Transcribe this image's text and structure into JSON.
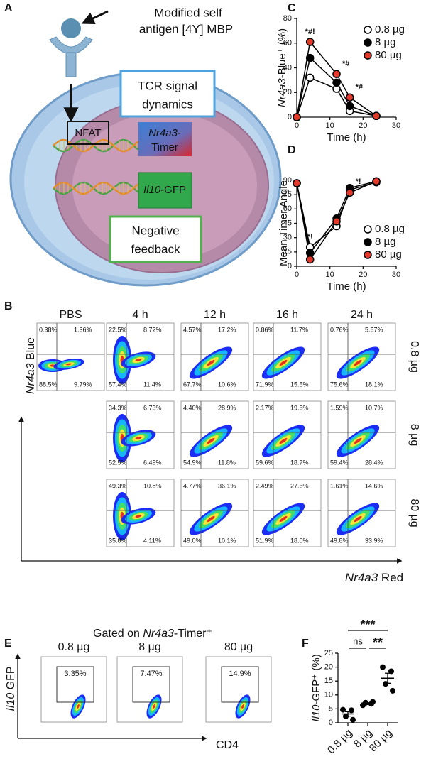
{
  "panel_a": {
    "label": "A",
    "antigen": [
      "Modified self",
      "antigen [4Y] MBP"
    ],
    "tcr_box": [
      "TCR signal",
      "dynamics"
    ],
    "nfat": "NFAT",
    "timer": {
      "line1": [
        {
          "text": "Nr4a3",
          "italic": true
        },
        {
          "text": "-"
        }
      ],
      "line2": "Timer"
    },
    "gfp": [
      {
        "text": "Il10",
        "italic": true
      },
      {
        "text": "-GFP"
      }
    ],
    "feedback": [
      "Negative",
      "feedback"
    ]
  },
  "panel_b": {
    "label": "B",
    "columns": [
      "PBS",
      "4 h",
      "12 h",
      "16 h",
      "24 h"
    ],
    "rows": [
      {
        "label": "0.8 µg",
        "plots": [
          [
            "0.38%",
            "1.36%",
            "88.5%",
            "9.79%"
          ],
          [
            "22.5%",
            "8.72%",
            "57.4%",
            "11.4%"
          ],
          [
            "4.57%",
            "17.2%",
            "67.7%",
            "10.6%"
          ],
          [
            "0.86%",
            "11.7%",
            "71.9%",
            "15.5%"
          ],
          [
            "0.76%",
            "5.57%",
            "75.6%",
            "18.1%"
          ]
        ]
      },
      {
        "label": "8 µg",
        "plots": [
          null,
          [
            "34.3%",
            "6.73%",
            "52.5%",
            "6.49%"
          ],
          [
            "4.40%",
            "28.9%",
            "54.9%",
            "11.8%"
          ],
          [
            "2.17%",
            "19.5%",
            "59.6%",
            "18.7%"
          ],
          [
            "1.59%",
            "10.7%",
            "59.4%",
            "28.4%"
          ]
        ]
      },
      {
        "label": "80 µg",
        "plots": [
          null,
          [
            "49.3%",
            "10.8%",
            "35.8%",
            "4.11%"
          ],
          [
            "4.77%",
            "36.1%",
            "49.0%",
            "10.1%"
          ],
          [
            "2.49%",
            "27.6%",
            "51.9%",
            "18.0%"
          ],
          [
            "1.61%",
            "14.6%",
            "49.8%",
            "33.9%"
          ]
        ]
      }
    ],
    "y_label": [
      {
        "text": "Nr4a3",
        "italic": true
      },
      {
        "text": " Blue"
      }
    ],
    "x_label": [
      {
        "text": "Nr4a3",
        "italic": true
      },
      {
        "text": " Red"
      }
    ]
  },
  "panel_e": {
    "label": "E",
    "title": [
      {
        "text": "Gated on "
      },
      {
        "text": "Nr4a3",
        "italic": true
      },
      {
        "text": "-Timer⁺"
      }
    ],
    "plots": [
      {
        "name": "0.8 µg",
        "gate": "3.35%"
      },
      {
        "name": "8 µg",
        "gate": "7.47%"
      },
      {
        "name": "80 µg",
        "gate": "14.9%"
      }
    ],
    "y_label": [
      {
        "text": "Il10",
        "italic": true
      },
      {
        "text": " GFP"
      }
    ],
    "x_label": "CD4"
  },
  "chart_data": [
    {
      "panel": "C",
      "type": "line",
      "x_label": "Time (h)",
      "y_label": [
        {
          "text": "Nr4a3",
          "italic": true
        },
        {
          "text": "-Blue⁺ (%)"
        }
      ],
      "x": [
        0,
        4,
        12,
        16,
        24
      ],
      "xlim": [
        0,
        30
      ],
      "xticks": [
        0,
        10,
        20,
        30
      ],
      "ylim": [
        0,
        80
      ],
      "yticks": [
        0,
        20,
        40,
        60,
        80
      ],
      "legend": "upper right",
      "series": [
        {
          "name": "0.8 µg",
          "color": "#000000",
          "fill": "#ffffff",
          "values": [
            0,
            32,
            23,
            5,
            1
          ]
        },
        {
          "name": "8 µg",
          "color": "#000000",
          "fill": "#000000",
          "values": [
            0,
            48,
            28,
            9,
            1
          ]
        },
        {
          "name": "80 µg",
          "color": "#000000",
          "fill": "#e2392b",
          "values": [
            0,
            61,
            35,
            16,
            1
          ]
        }
      ],
      "annotations": [
        {
          "text": "*#!",
          "x": 4
        },
        {
          "text": "*#",
          "x": 12
        },
        {
          "text": "*#",
          "x": 16
        }
      ]
    },
    {
      "panel": "D",
      "type": "line",
      "x_label": "Time (h)",
      "y_label": "Mean Timer Angle",
      "x": [
        0,
        4,
        12,
        16,
        24
      ],
      "xlim": [
        0,
        30
      ],
      "xticks": [
        0,
        10,
        20,
        30
      ],
      "ylim": [
        0,
        90
      ],
      "yticks": [
        0,
        15,
        30,
        45,
        60,
        75,
        90
      ],
      "legend": "lower right",
      "series": [
        {
          "name": "0.8 µg",
          "color": "#000000",
          "fill": "#ffffff",
          "values": [
            87,
            20,
            42,
            80,
            88
          ]
        },
        {
          "name": "8 µg",
          "color": "#000000",
          "fill": "#000000",
          "values": [
            87,
            14,
            50,
            82,
            89
          ]
        },
        {
          "name": "80 µg",
          "color": "#000000",
          "fill": "#e2392b",
          "values": [
            87,
            7,
            47,
            77,
            89
          ]
        }
      ],
      "annotations": [
        {
          "text": "*!",
          "x": 4
        },
        {
          "text": "*!",
          "x": 16
        }
      ]
    },
    {
      "panel": "F",
      "type": "dot",
      "y_label": [
        {
          "text": "Il10",
          "italic": true
        },
        {
          "text": "-GFP⁺ (%)"
        }
      ],
      "categories": [
        "0.8 µg",
        "8 µg",
        "80 µg"
      ],
      "values": [
        [
          4.7,
          4.5,
          2.3,
          1.1
        ],
        [
          6.3,
          6.8,
          7.2,
          7.5
        ],
        [
          20,
          18.5,
          14,
          11.5
        ]
      ],
      "means": [
        3.2,
        6.9,
        16.0
      ],
      "sem": [
        0.8,
        0.3,
        1.8
      ],
      "color": "#000000",
      "ylim": [
        0,
        25
      ],
      "yticks": [
        0,
        5,
        10,
        15,
        20,
        25
      ],
      "comparisons": [
        {
          "from": 0,
          "to": 1,
          "label": "ns"
        },
        {
          "from": 1,
          "to": 2,
          "label": "**"
        },
        {
          "from": 0,
          "to": 2,
          "label": "***"
        }
      ]
    }
  ]
}
